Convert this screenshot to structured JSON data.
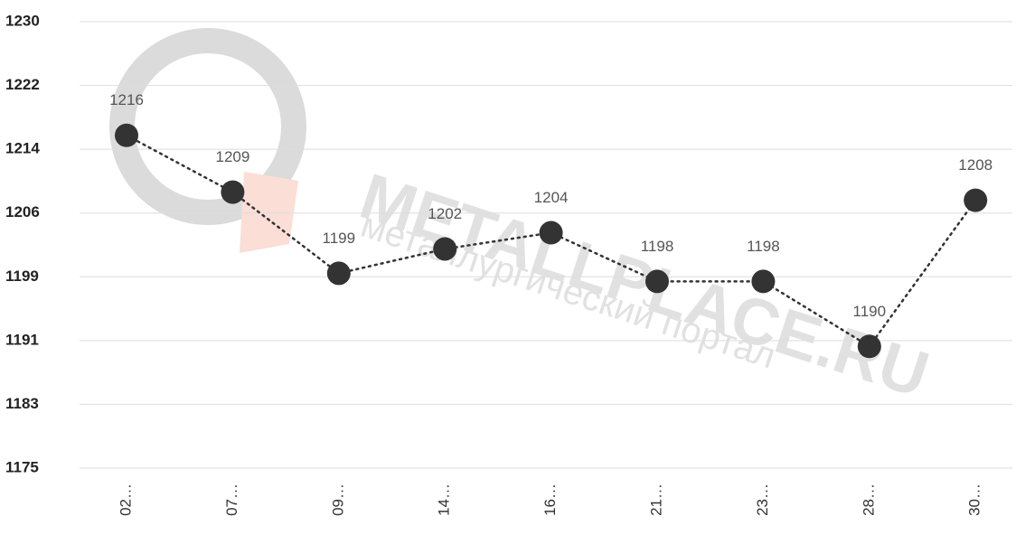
{
  "chart_data": {
    "type": "line",
    "categories": [
      "02…",
      "07…",
      "09…",
      "14…",
      "16…",
      "21…",
      "23…",
      "28…",
      "30…"
    ],
    "series": [
      {
        "name": null,
        "color": "#333333",
        "values": [
          1216,
          1209,
          1199,
          1202,
          1204,
          1198,
          1198,
          1190,
          1208
        ]
      }
    ],
    "ylim": [
      1175,
      1230
    ],
    "yticks": [
      1175,
      {
        "value": 1182.86,
        "label": "1183"
      },
      {
        "value": 1190.71,
        "label": "1191"
      },
      {
        "value": 1198.57,
        "label": "1199"
      },
      {
        "value": 1206.43,
        "label": "1206"
      },
      {
        "value": 1214.29,
        "label": "1214"
      },
      {
        "value": 1222.14,
        "label": "1222"
      },
      1230
    ],
    "grid": true,
    "watermark": {
      "title": "METALLPLACE.RU",
      "subtitle": "металлургический портал"
    }
  }
}
